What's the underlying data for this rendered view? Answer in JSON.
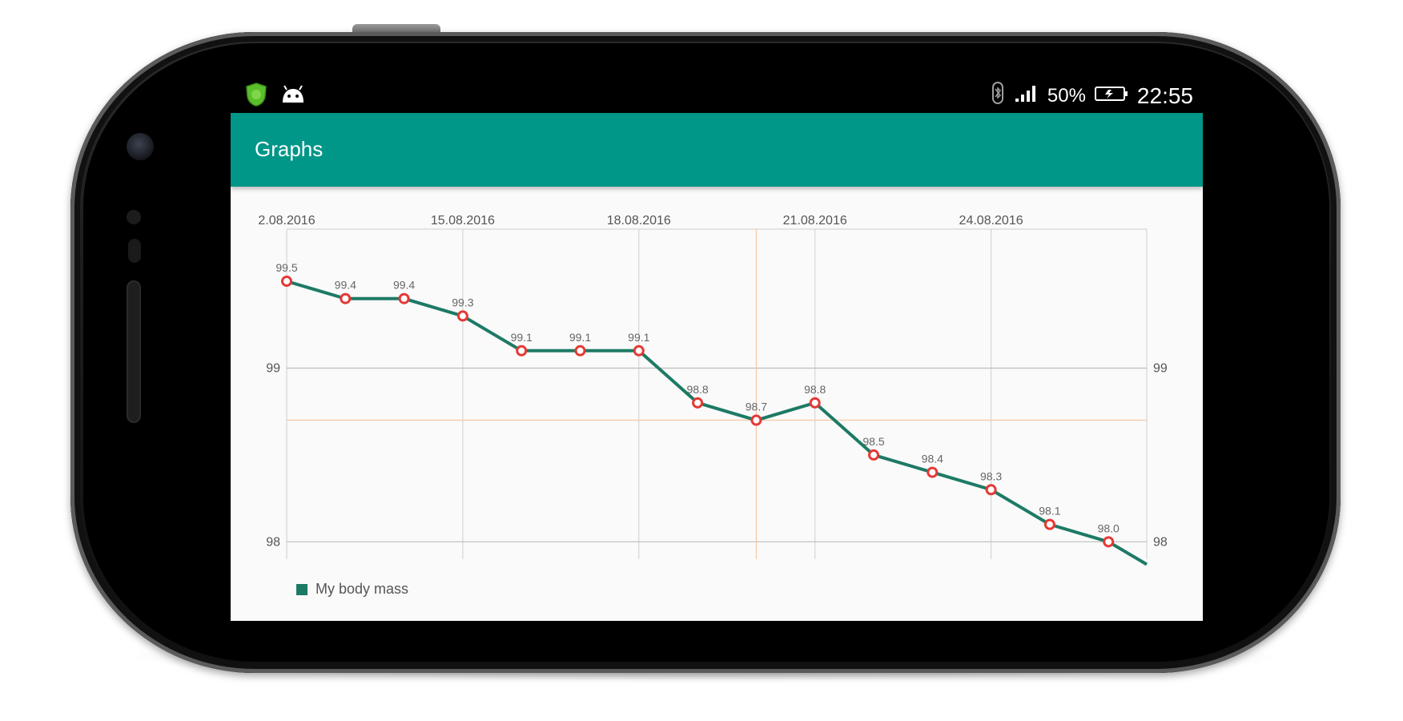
{
  "status_bar": {
    "left_icons": [
      "shield-icon",
      "android-icon"
    ],
    "battery_percent": "50%",
    "time": "22:55",
    "right_icons": [
      "bluetooth-icon",
      "signal-icon",
      "battery-icon"
    ]
  },
  "app_bar": {
    "title": "Graphs"
  },
  "colors": {
    "accent": "#009688",
    "line": "#1d7a65",
    "marker": "#e53935",
    "highlight": "#f5c9a3"
  },
  "chart_data": {
    "type": "line",
    "x_tick_labels": [
      "2.08.2016",
      "15.08.2016",
      "18.08.2016",
      "21.08.2016",
      "24.08.2016"
    ],
    "y_ticks": [
      98,
      99
    ],
    "ylim": [
      97.9,
      99.8
    ],
    "grid": true,
    "legend_position": "bottom-left",
    "series": [
      {
        "name": "My body mass",
        "values": [
          99.5,
          99.4,
          99.4,
          99.3,
          99.1,
          99.1,
          99.1,
          98.8,
          98.7,
          98.8,
          98.5,
          98.4,
          98.3,
          98.1,
          98.0
        ],
        "data_labels": [
          "99.5",
          "99.4",
          "99.4",
          "99.3",
          "99.1",
          "99.1",
          "99.1",
          "98.8",
          "98.7",
          "98.8",
          "98.5",
          "98.4",
          "98.3",
          "98.1",
          "98.0"
        ],
        "trailing_value": 97.87
      }
    ],
    "highlight": {
      "x_index": 8,
      "y": 98.7
    }
  }
}
